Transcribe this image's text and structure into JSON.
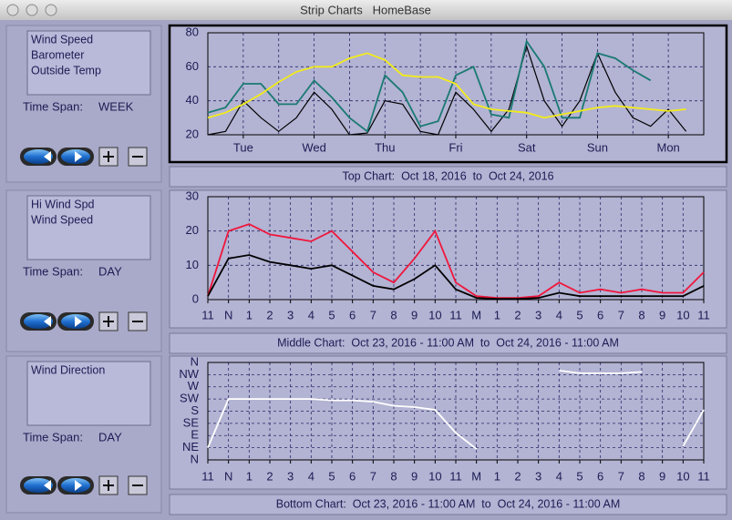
{
  "window": {
    "title": "Strip Charts   HomeBase"
  },
  "panels": [
    {
      "time_span_label": "Time Span:",
      "time_span": "WEEK",
      "caption": "Top Chart:  Oct 18, 2016  to  Oct 24, 2016",
      "chart": {
        "type": "line",
        "ylim": [
          20,
          80
        ],
        "yticks": [
          20,
          40,
          60,
          80
        ],
        "categories": [
          "Tue",
          "Wed",
          "Thu",
          "Fri",
          "Sat",
          "Sun",
          "Mon"
        ],
        "series": [
          {
            "name": "Wind Speed",
            "color": "#000000",
            "values": [
              20,
              22,
              40,
              30,
              22,
              30,
              45,
              35,
              20,
              21,
              40,
              38,
              22,
              20,
              45,
              35,
              22,
              35,
              72,
              40,
              25,
              40,
              68,
              45,
              30,
              25,
              35,
              22,
              null
            ]
          },
          {
            "name": "Barometer",
            "color": "#1a7a72",
            "values": [
              33,
              36,
              50,
              50,
              38,
              38,
              52,
              42,
              30,
              22,
              55,
              45,
              25,
              28,
              55,
              60,
              32,
              30,
              75,
              60,
              30,
              30,
              68,
              65,
              58,
              52,
              null,
              null,
              null
            ]
          },
          {
            "name": "Outside Temp",
            "color": "#f2ec1a",
            "values": [
              30,
              33,
              38,
              44,
              51,
              57,
              60,
              60,
              65,
              68,
              64,
              55,
              54,
              54,
              50,
              38,
              35,
              34,
              33,
              30,
              32,
              34,
              36,
              37,
              36,
              35,
              34,
              35,
              null
            ]
          }
        ]
      }
    },
    {
      "time_span_label": "Time Span:",
      "time_span": "DAY",
      "caption": "Middle Chart:  Oct 23, 2016 - 11:00 AM  to  Oct 24, 2016 - 11:00 AM",
      "chart": {
        "type": "line",
        "ylim": [
          0,
          30
        ],
        "yticks": [
          0,
          10,
          20,
          30
        ],
        "categories": [
          "11",
          "N",
          "1",
          "2",
          "3",
          "4",
          "5",
          "6",
          "7",
          "8",
          "9",
          "10",
          "11",
          "M",
          "1",
          "2",
          "3",
          "4",
          "5",
          "6",
          "7",
          "8",
          "9",
          "10",
          "11"
        ],
        "series": [
          {
            "name": "Hi Wind Spd",
            "color": "#f0163c",
            "values": [
              1,
              20,
              22,
              19,
              18,
              17,
              20,
              14,
              8,
              5,
              12,
              20,
              5,
              1,
              0.5,
              0.5,
              1,
              5,
              2,
              3,
              2,
              3,
              2,
              2,
              8
            ]
          },
          {
            "name": "Wind Speed",
            "color": "#000000",
            "values": [
              1,
              12,
              13,
              11,
              10,
              9,
              10,
              7,
              4,
              3,
              6,
              10,
              3,
              0.5,
              0.2,
              0.2,
              0.5,
              2,
              1,
              1,
              1,
              1,
              1,
              1,
              4
            ]
          }
        ]
      }
    },
    {
      "time_span_label": "Time Span:",
      "time_span": "DAY",
      "caption": "Bottom Chart:  Oct 23, 2016 - 11:00 AM  to  Oct 24, 2016 - 11:00 AM",
      "chart": {
        "type": "line",
        "ylim": [
          0,
          360
        ],
        "yticks": [
          {
            "value": 0,
            "label": "N"
          },
          {
            "value": 45,
            "label": "NE"
          },
          {
            "value": 90,
            "label": "E"
          },
          {
            "value": 135,
            "label": "SE"
          },
          {
            "value": 180,
            "label": "S"
          },
          {
            "value": 225,
            "label": "SW"
          },
          {
            "value": 270,
            "label": "W"
          },
          {
            "value": 315,
            "label": "NW"
          },
          {
            "value": 360,
            "label": "N"
          }
        ],
        "categories": [
          "11",
          "N",
          "1",
          "2",
          "3",
          "4",
          "5",
          "6",
          "7",
          "8",
          "9",
          "10",
          "11",
          "M",
          "1",
          "2",
          "3",
          "4",
          "5",
          "6",
          "7",
          "8",
          "9",
          "10",
          "11"
        ],
        "series": [
          {
            "name": "Wind Direction",
            "color": "#ffffff",
            "values": [
              45,
              225,
              225,
              225,
              225,
              225,
              220,
              220,
              215,
              200,
              195,
              185,
              100,
              40,
              null,
              null,
              null,
              330,
              320,
              320,
              320,
              325,
              null,
              50,
              185
            ]
          }
        ]
      }
    }
  ]
}
